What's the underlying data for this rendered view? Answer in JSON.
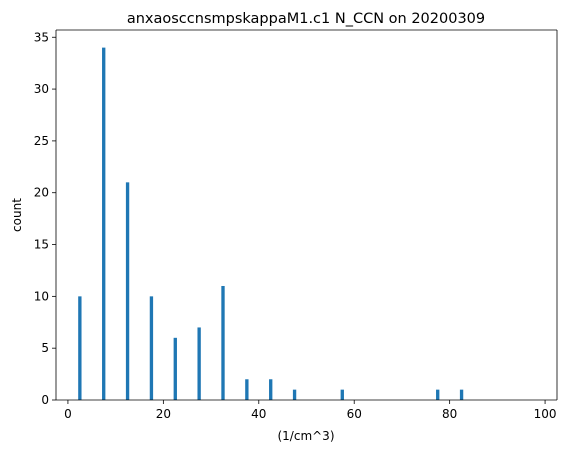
{
  "chart_data": {
    "type": "bar",
    "title": "anxaosccnsmpskappaM1.c1 N_CCN on 20200309",
    "xlabel": "(1/cm^3)",
    "ylabel": "count",
    "xlim": [
      -2.5,
      102.5
    ],
    "ylim": [
      0,
      35.7
    ],
    "xticks": [
      0,
      20,
      40,
      60,
      80,
      100
    ],
    "yticks": [
      0,
      5,
      10,
      15,
      20,
      25,
      30,
      35
    ],
    "bar_width": 0.7,
    "bar_color": "#1f77b4",
    "grid": false,
    "legend": "none",
    "x": [
      2.5,
      7.5,
      12.5,
      17.5,
      22.5,
      27.5,
      32.5,
      37.5,
      42.5,
      47.5,
      57.5,
      77.5,
      82.5
    ],
    "values": [
      10,
      34,
      21,
      10,
      6,
      7,
      11,
      2,
      2,
      1,
      1,
      1,
      1
    ]
  }
}
